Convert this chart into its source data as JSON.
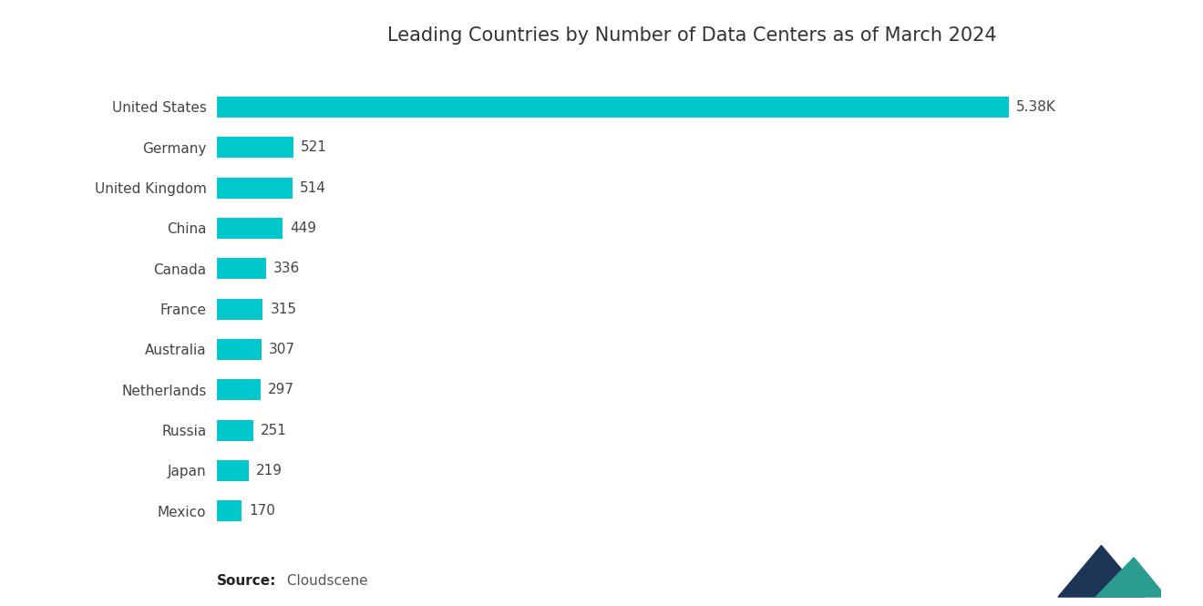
{
  "title": "Leading Countries by Number of Data Centers as of March 2024",
  "countries": [
    "United States",
    "Germany",
    "United Kingdom",
    "China",
    "Canada",
    "France",
    "Australia",
    "Netherlands",
    "Russia",
    "Japan",
    "Mexico"
  ],
  "values": [
    5380,
    521,
    514,
    449,
    336,
    315,
    307,
    297,
    251,
    219,
    170
  ],
  "labels": [
    "5.38K",
    "521",
    "514",
    "449",
    "336",
    "315",
    "307",
    "297",
    "251",
    "219",
    "170"
  ],
  "bar_color": "#00C8CC",
  "background_color": "#ffffff",
  "source_bold": "Source:",
  "source_normal": " Cloudscene",
  "title_fontsize": 15,
  "label_fontsize": 11,
  "country_fontsize": 11,
  "source_fontsize": 11,
  "logo_dark": "#1d3557",
  "logo_teal": "#2a9d8f"
}
